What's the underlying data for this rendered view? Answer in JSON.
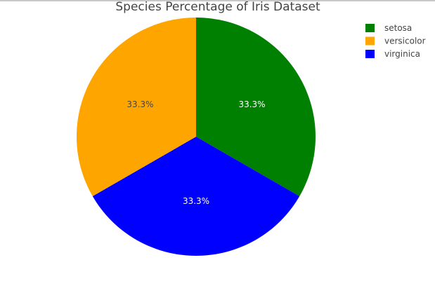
{
  "chart_data": {
    "type": "pie",
    "title": "Species Percentage of Iris Dataset",
    "categories": [
      "setosa",
      "versicolor",
      "virginica"
    ],
    "values": [
      33.3,
      33.3,
      33.3
    ],
    "labels": [
      "33.3%",
      "33.3%",
      "33.3%"
    ],
    "colors": [
      "#008000",
      "#FFA500",
      "#0000FF"
    ],
    "label_colors": [
      "#ffffff",
      "#444444",
      "#ffffff"
    ],
    "slice_order_clockwise_from_top": [
      "setosa",
      "virginica",
      "versicolor"
    ],
    "legend_placement": "top-right"
  }
}
